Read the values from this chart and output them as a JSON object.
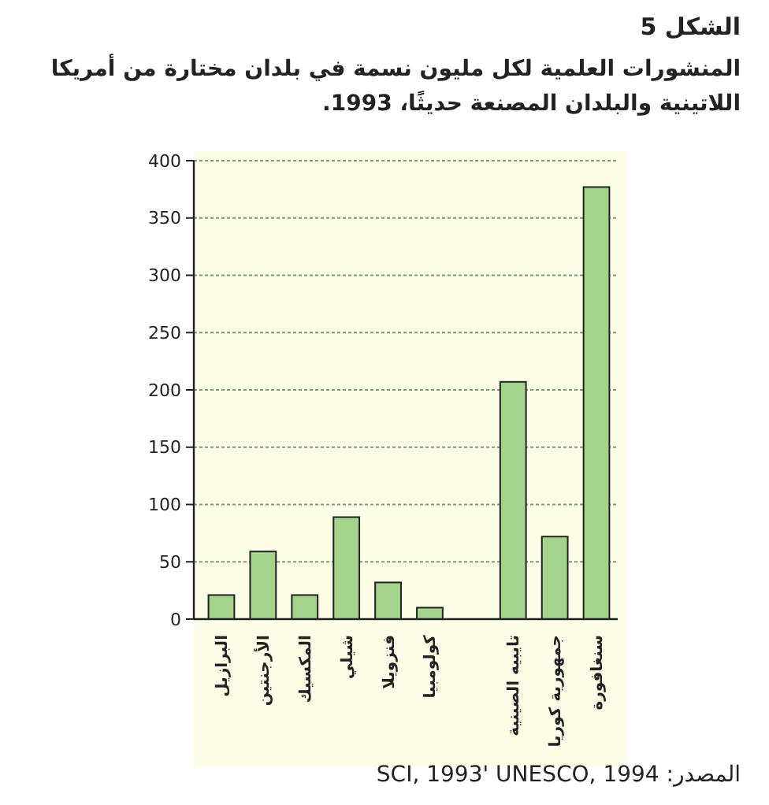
{
  "chart_data": {
    "type": "bar",
    "title": "الشكل 5",
    "subtitle": "المنشورات العلمية لكل مليون نسمة في بلدان مختارة من أمريكا اللاتينية والبلدان المصنعة حديثًا، 1993.",
    "categories": [
      "البرازيل",
      "الأرجنتين",
      "المكسيك",
      "شيلي",
      "فنزويلا",
      "كولومبيا",
      null,
      "تايبيه الصينية",
      "جمهورية كوريا",
      "سنغافورة"
    ],
    "values": [
      21,
      59,
      21,
      89,
      32,
      10,
      null,
      207,
      72,
      377
    ],
    "color": "#a3d38c",
    "ylim": [
      0,
      400
    ],
    "yticks": [
      0,
      50,
      100,
      150,
      200,
      250,
      300,
      350,
      400
    ],
    "grid": "y",
    "annotations": [
      "المصدر: SCI, 1993' UNESCO, 1994"
    ]
  }
}
